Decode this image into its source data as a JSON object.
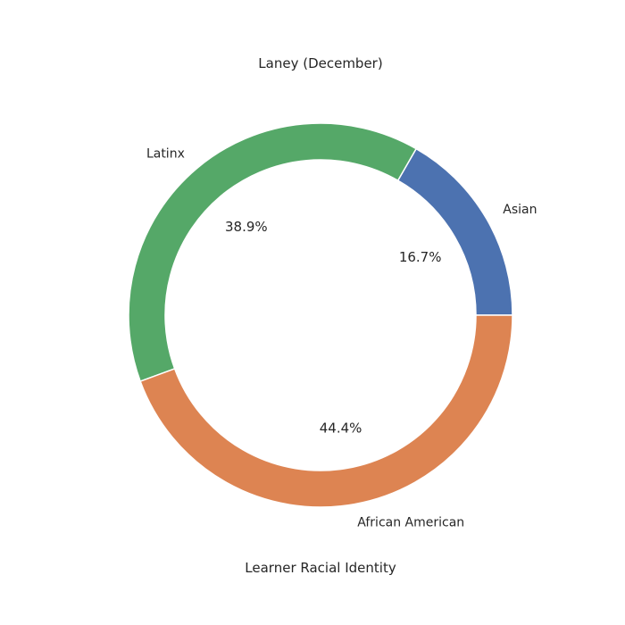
{
  "chart_data": {
    "type": "pie",
    "title": "Laney (December)",
    "xlabel": "Learner Racial Identity",
    "ylabel": "",
    "slices": [
      {
        "label": "Asian",
        "value": 16.7,
        "pct_label": "16.7%",
        "color": "#4c72b0"
      },
      {
        "label": "Latinx",
        "value": 38.9,
        "pct_label": "38.9%",
        "color": "#55a868"
      },
      {
        "label": "African American",
        "value": 44.4,
        "pct_label": "44.4%",
        "color": "#dd8452"
      }
    ],
    "start_angle_deg": 0,
    "direction": "counterclockwise",
    "donut": true
  }
}
